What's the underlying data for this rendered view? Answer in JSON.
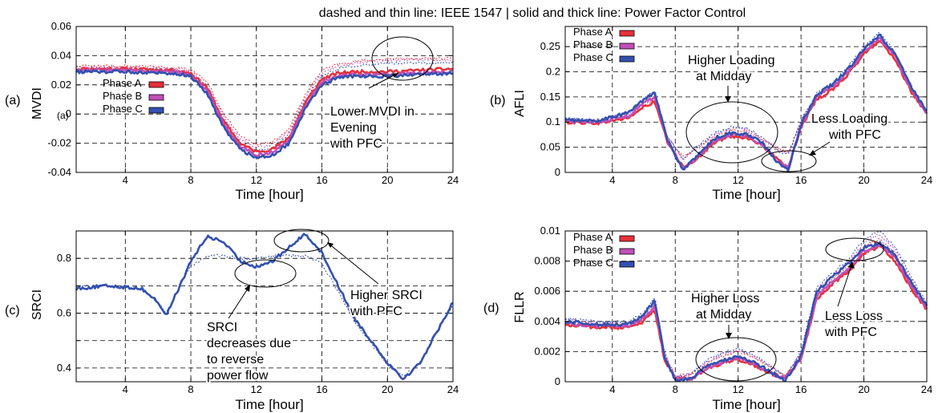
{
  "figure": {
    "suptitle": "dashed and thin line: IEEE 1547 | solid and thick line: Power Factor Control"
  },
  "chart_data": [
    {
      "type": "line",
      "panel_label": "(a)",
      "extra_label": "(a)",
      "xlabel": "Time [hour]",
      "ylabel": "MVDI",
      "xlim": [
        1,
        24
      ],
      "ylim": [
        -0.04,
        0.06
      ],
      "xticks": [
        4,
        8,
        12,
        16,
        20,
        24
      ],
      "yticks": [
        -0.04,
        -0.02,
        0,
        0.02,
        0.04,
        0.06
      ],
      "ytick_labels": [
        "-0.04",
        "-0.02",
        "0",
        "0.02",
        "0.04",
        "0.06"
      ],
      "grid": true,
      "legend_position": "center-left",
      "legend": [
        "Phase A",
        "Phase B",
        "Phase C"
      ],
      "colors": [
        "#e8303a",
        "#c050b8",
        "#3450b0"
      ],
      "x": [
        1,
        4,
        7,
        8,
        9,
        10,
        11,
        12,
        13,
        14,
        15,
        16,
        17,
        18,
        20,
        22,
        24
      ],
      "series": [
        {
          "name": "Phase A",
          "style": "PFC",
          "values": [
            0.031,
            0.031,
            0.03,
            0.028,
            0.018,
            -0.005,
            -0.02,
            -0.026,
            -0.024,
            -0.016,
            0.008,
            0.024,
            0.028,
            0.029,
            0.029,
            0.03,
            0.031
          ]
        },
        {
          "name": "Phase B",
          "style": "PFC",
          "values": [
            0.03,
            0.03,
            0.029,
            0.027,
            0.016,
            -0.007,
            -0.022,
            -0.028,
            -0.026,
            -0.018,
            0.006,
            0.022,
            0.026,
            0.027,
            0.027,
            0.028,
            0.029
          ]
        },
        {
          "name": "Phase C",
          "style": "PFC",
          "values": [
            0.029,
            0.029,
            0.028,
            0.026,
            0.014,
            -0.009,
            -0.024,
            -0.03,
            -0.028,
            -0.02,
            0.004,
            0.02,
            0.025,
            0.026,
            0.026,
            0.027,
            0.028
          ]
        },
        {
          "name": "Phase A",
          "style": "IEEE 1547",
          "values": [
            0.033,
            0.033,
            0.032,
            0.03,
            0.022,
            0.0,
            -0.015,
            -0.021,
            -0.019,
            -0.01,
            0.014,
            0.03,
            0.034,
            0.036,
            0.038,
            0.038,
            0.038
          ]
        },
        {
          "name": "Phase B",
          "style": "IEEE 1547",
          "values": [
            0.032,
            0.032,
            0.031,
            0.029,
            0.02,
            -0.002,
            -0.017,
            -0.023,
            -0.021,
            -0.012,
            0.012,
            0.028,
            0.033,
            0.035,
            0.037,
            0.037,
            0.037
          ]
        },
        {
          "name": "Phase C",
          "style": "IEEE 1547",
          "values": [
            0.031,
            0.031,
            0.03,
            0.028,
            0.018,
            -0.004,
            -0.019,
            -0.025,
            -0.023,
            -0.014,
            0.01,
            0.026,
            0.031,
            0.033,
            0.035,
            0.035,
            0.035
          ]
        }
      ],
      "annotations": [
        {
          "lines": [
            "Lower MVDI in",
            "Evening",
            "with PFC"
          ]
        }
      ]
    },
    {
      "type": "line",
      "panel_label": "(b)",
      "xlabel": "Time [hour]",
      "ylabel": "AFLI",
      "xlim": [
        1,
        24
      ],
      "ylim": [
        0,
        0.29
      ],
      "xticks": [
        4,
        8,
        12,
        16,
        20,
        24
      ],
      "yticks": [
        0,
        0.05,
        0.1,
        0.15,
        0.2,
        0.25
      ],
      "ytick_labels": [
        "0",
        "0.05",
        "0.1",
        "0.15",
        "0.2",
        "0.25"
      ],
      "grid": true,
      "legend_position": "top-left",
      "legend": [
        "Phase A",
        "Phase B",
        "Phase C"
      ],
      "colors": [
        "#e8303a",
        "#c050b8",
        "#3450b0"
      ],
      "x": [
        1,
        3,
        5,
        6,
        6.7,
        7.5,
        8.5,
        9.5,
        10.5,
        11.5,
        12.5,
        13.5,
        14.5,
        15.2,
        16,
        17,
        18,
        19,
        20,
        21,
        22,
        23,
        24
      ],
      "series": [
        {
          "name": "Phase A",
          "style": "PFC",
          "values": [
            0.1,
            0.098,
            0.108,
            0.13,
            0.14,
            0.06,
            0.01,
            0.03,
            0.06,
            0.072,
            0.07,
            0.055,
            0.025,
            0.01,
            0.09,
            0.145,
            0.165,
            0.195,
            0.235,
            0.262,
            0.225,
            0.16,
            0.115
          ]
        },
        {
          "name": "Phase B",
          "style": "PFC",
          "values": [
            0.102,
            0.1,
            0.112,
            0.138,
            0.15,
            0.062,
            0.008,
            0.032,
            0.064,
            0.075,
            0.073,
            0.057,
            0.022,
            0.008,
            0.092,
            0.15,
            0.17,
            0.2,
            0.24,
            0.267,
            0.23,
            0.165,
            0.118
          ]
        },
        {
          "name": "Phase C",
          "style": "PFC",
          "values": [
            0.104,
            0.102,
            0.118,
            0.145,
            0.16,
            0.064,
            0.005,
            0.035,
            0.068,
            0.078,
            0.076,
            0.06,
            0.02,
            0.004,
            0.095,
            0.155,
            0.175,
            0.205,
            0.245,
            0.272,
            0.235,
            0.17,
            0.12
          ]
        },
        {
          "name": "Phase A",
          "style": "IEEE 1547",
          "values": [
            0.103,
            0.1,
            0.11,
            0.134,
            0.143,
            0.068,
            0.03,
            0.05,
            0.072,
            0.084,
            0.082,
            0.066,
            0.048,
            0.04,
            0.1,
            0.15,
            0.17,
            0.2,
            0.24,
            0.266,
            0.228,
            0.163,
            0.118
          ]
        },
        {
          "name": "Phase B",
          "style": "IEEE 1547",
          "values": [
            0.105,
            0.102,
            0.114,
            0.14,
            0.152,
            0.07,
            0.028,
            0.052,
            0.075,
            0.087,
            0.085,
            0.068,
            0.045,
            0.038,
            0.102,
            0.154,
            0.174,
            0.205,
            0.245,
            0.272,
            0.233,
            0.168,
            0.12
          ]
        },
        {
          "name": "Phase C",
          "style": "IEEE 1547",
          "values": [
            0.107,
            0.104,
            0.12,
            0.147,
            0.162,
            0.072,
            0.026,
            0.055,
            0.078,
            0.09,
            0.088,
            0.071,
            0.043,
            0.036,
            0.104,
            0.158,
            0.178,
            0.21,
            0.25,
            0.278,
            0.238,
            0.172,
            0.122
          ]
        }
      ],
      "annotations": [
        {
          "lines": [
            "Higher Loading",
            "at Midday"
          ]
        },
        {
          "lines": [
            "Less Loading",
            "with PFC"
          ]
        }
      ]
    },
    {
      "type": "line",
      "panel_label": "(c)",
      "xlabel": "Time [hour]",
      "ylabel": "SRCI",
      "xlim": [
        1,
        24
      ],
      "ylim": [
        0.35,
        0.9
      ],
      "xticks": [
        4,
        8,
        12,
        16,
        20,
        24
      ],
      "yticks": [
        0.4,
        0.5,
        0.6,
        0.7,
        0.8
      ],
      "ytick_labels": [
        "0.4",
        "",
        "0.6",
        "",
        "0.8"
      ],
      "grid": true,
      "colors": [
        "#3450b0"
      ],
      "x": [
        1,
        3,
        5,
        6,
        6.5,
        7,
        7.5,
        8,
        9,
        10,
        11,
        12,
        13,
        14,
        15,
        16,
        17,
        18,
        19,
        20,
        21,
        22,
        23,
        24
      ],
      "series": [
        {
          "name": "",
          "style": "PFC",
          "values": [
            0.69,
            0.7,
            0.69,
            0.64,
            0.59,
            0.66,
            0.72,
            0.79,
            0.88,
            0.86,
            0.79,
            0.77,
            0.79,
            0.84,
            0.89,
            0.82,
            0.7,
            0.58,
            0.5,
            0.42,
            0.36,
            0.42,
            0.53,
            0.64
          ]
        },
        {
          "name": "",
          "style": "IEEE 1547",
          "values": [
            0.7,
            0.7,
            0.69,
            0.64,
            0.6,
            0.66,
            0.72,
            0.77,
            0.81,
            0.81,
            0.8,
            0.8,
            0.81,
            0.81,
            0.81,
            0.78,
            0.68,
            0.57,
            0.49,
            0.41,
            0.37,
            0.42,
            0.53,
            0.63
          ]
        }
      ],
      "annotations": [
        {
          "lines": [
            "Higher SRCI",
            "with PFC"
          ]
        },
        {
          "lines": [
            "SRCI",
            "decreases due",
            "to reverse",
            "power flow"
          ]
        }
      ]
    },
    {
      "type": "line",
      "panel_label": "(d)",
      "xlabel": "Time [hour]",
      "ylabel": "FLLR",
      "xlim": [
        1,
        24
      ],
      "ylim": [
        0,
        0.01
      ],
      "xticks": [
        4,
        8,
        12,
        16,
        20,
        24
      ],
      "yticks": [
        0,
        0.002,
        0.004,
        0.006,
        0.008,
        0.01
      ],
      "ytick_labels": [
        "0",
        "0.002",
        "0.004",
        "0.006",
        "0.008",
        "0.01"
      ],
      "grid": true,
      "legend_position": "top-left",
      "legend": [
        "Phase A",
        "Phase B",
        "Phase C"
      ],
      "colors": [
        "#e8303a",
        "#c050b8",
        "#3450b0"
      ],
      "x": [
        1,
        3,
        5,
        6,
        6.7,
        7.3,
        8,
        9,
        10,
        11,
        12,
        13,
        14,
        15,
        16,
        17,
        18,
        19,
        20,
        21,
        22,
        23,
        24
      ],
      "series": [
        {
          "name": "Phase A",
          "style": "PFC",
          "values": [
            0.0038,
            0.0036,
            0.0036,
            0.004,
            0.0048,
            0.0015,
            0.0002,
            0.0002,
            0.0008,
            0.0012,
            0.0015,
            0.0011,
            0.0006,
            0.0002,
            0.0015,
            0.0055,
            0.0065,
            0.0073,
            0.0085,
            0.009,
            0.008,
            0.0062,
            0.0048
          ]
        },
        {
          "name": "Phase B",
          "style": "PFC",
          "values": [
            0.0039,
            0.0037,
            0.0037,
            0.0042,
            0.005,
            0.0016,
            0.0002,
            0.0002,
            0.0009,
            0.0013,
            0.0016,
            0.0012,
            0.0006,
            0.0002,
            0.0016,
            0.0057,
            0.0067,
            0.0075,
            0.0087,
            0.0091,
            0.0082,
            0.0064,
            0.0049
          ]
        },
        {
          "name": "Phase C",
          "style": "PFC",
          "values": [
            0.004,
            0.0038,
            0.0038,
            0.0044,
            0.0054,
            0.0017,
            0.0001,
            0.0002,
            0.001,
            0.0014,
            0.0017,
            0.0013,
            0.0007,
            0.0001,
            0.0017,
            0.006,
            0.007,
            0.0078,
            0.0089,
            0.0092,
            0.0084,
            0.0066,
            0.005
          ]
        },
        {
          "name": "Phase A",
          "style": "IEEE 1547",
          "values": [
            0.004,
            0.0038,
            0.0038,
            0.0042,
            0.005,
            0.0018,
            0.0004,
            0.0005,
            0.0012,
            0.0017,
            0.002,
            0.0016,
            0.001,
            0.0004,
            0.0018,
            0.0058,
            0.0068,
            0.0077,
            0.009,
            0.0095,
            0.0085,
            0.0066,
            0.005
          ]
        },
        {
          "name": "Phase B",
          "style": "IEEE 1547",
          "values": [
            0.0041,
            0.0039,
            0.0039,
            0.0044,
            0.0052,
            0.0019,
            0.0004,
            0.0005,
            0.0013,
            0.0018,
            0.0021,
            0.0017,
            0.001,
            0.0004,
            0.0019,
            0.006,
            0.007,
            0.0079,
            0.0092,
            0.0098,
            0.0087,
            0.0068,
            0.0051
          ]
        },
        {
          "name": "Phase C",
          "style": "IEEE 1547",
          "values": [
            0.0042,
            0.004,
            0.004,
            0.0046,
            0.0056,
            0.002,
            0.0003,
            0.0005,
            0.0014,
            0.0019,
            0.0022,
            0.0018,
            0.0011,
            0.0003,
            0.002,
            0.0062,
            0.0072,
            0.0081,
            0.0094,
            0.01,
            0.0089,
            0.007,
            0.0052
          ]
        }
      ],
      "annotations": [
        {
          "lines": [
            "Higher Loss",
            "at Midday"
          ]
        },
        {
          "lines": [
            "Less Loss",
            "with PFC"
          ]
        }
      ]
    }
  ]
}
